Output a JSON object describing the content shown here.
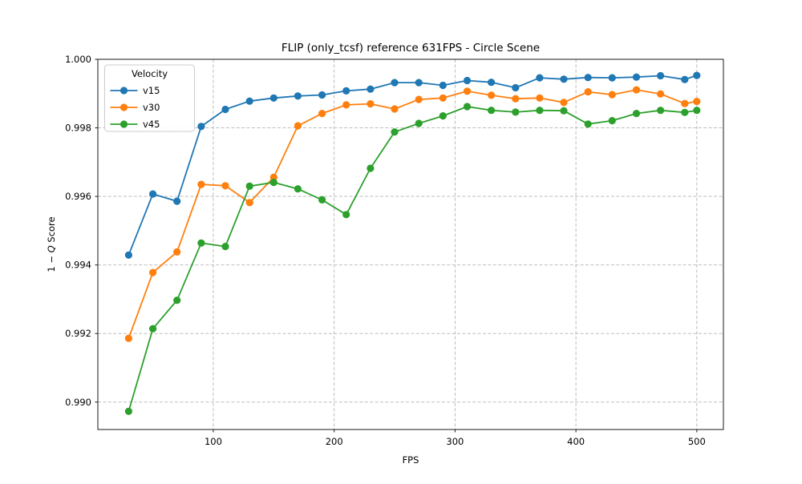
{
  "chart_data": {
    "type": "line",
    "title": "FLIP (only_tcsf) reference 631FPS - Circle Scene",
    "xlabel": "FPS",
    "ylabel": "1 − Q Score",
    "ylabel_math": {
      "pre": "1 − ",
      "italic": "Q",
      "post": " Score"
    },
    "legend": {
      "title": "Velocity",
      "position": "upper left"
    },
    "x": [
      30,
      50,
      70,
      90,
      110,
      130,
      150,
      170,
      190,
      210,
      230,
      250,
      270,
      290,
      310,
      330,
      350,
      370,
      390,
      410,
      430,
      450,
      470,
      490,
      500
    ],
    "series": [
      {
        "name": "v15",
        "color": "#1f77b4",
        "values": [
          0.99429,
          0.99607,
          0.99586,
          0.99804,
          0.99854,
          0.99878,
          0.99887,
          0.99893,
          0.99896,
          0.99908,
          0.99913,
          0.99932,
          0.99932,
          0.99924,
          0.99938,
          0.99933,
          0.99917,
          0.99946,
          0.99942,
          0.99947,
          0.99946,
          0.99948,
          0.99952,
          0.99941,
          0.99953
        ]
      },
      {
        "name": "v30",
        "color": "#ff7f0e",
        "values": [
          0.99186,
          0.99378,
          0.99438,
          0.99635,
          0.99631,
          0.99582,
          0.99656,
          0.99806,
          0.99842,
          0.99867,
          0.9987,
          0.99855,
          0.99883,
          0.99887,
          0.99907,
          0.99895,
          0.99885,
          0.99887,
          0.99874,
          0.99905,
          0.99897,
          0.99911,
          0.99899,
          0.99871,
          0.99877
        ]
      },
      {
        "name": "v45",
        "color": "#2ca02c",
        "values": [
          0.98973,
          0.99214,
          0.99297,
          0.99464,
          0.99454,
          0.9963,
          0.99641,
          0.99622,
          0.9959,
          0.99547,
          0.99682,
          0.99788,
          0.99813,
          0.99835,
          0.99862,
          0.99851,
          0.99846,
          0.99851,
          0.9985,
          0.99811,
          0.99821,
          0.99842,
          0.99851,
          0.99845,
          0.99851
        ]
      }
    ],
    "xticks": [
      100,
      200,
      300,
      400,
      500
    ],
    "xtick_labels": [
      "100",
      "200",
      "300",
      "400",
      "500"
    ],
    "yticks": [
      0.99,
      0.992,
      0.994,
      0.996,
      0.998,
      1.0
    ],
    "ytick_labels": [
      "0.990",
      "0.992",
      "0.994",
      "0.996",
      "0.998",
      "1.000"
    ],
    "xlim": [
      4.5,
      522
    ],
    "ylim": [
      0.9892,
      1.0
    ],
    "grid": true,
    "grid_style": "dashed",
    "marker": "circle"
  },
  "colors": {
    "background": "#ffffff",
    "grid": "#b4b4b4",
    "axis": "#1a1a1a",
    "text": "#000000",
    "legend_border": "#cccccc",
    "legend_fill": "#ffffff"
  }
}
